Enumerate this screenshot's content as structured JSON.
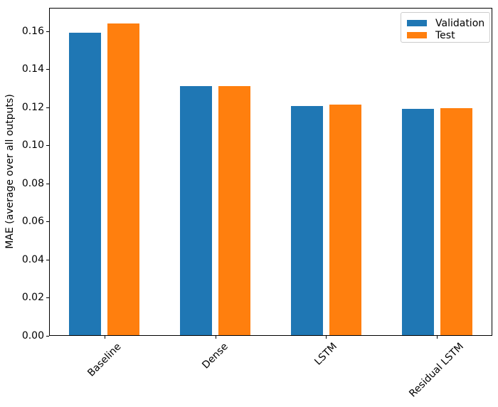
{
  "chart_data": {
    "type": "bar",
    "title": "",
    "categories": [
      "Baseline",
      "Dense",
      "LSTM",
      "Residual LSTM"
    ],
    "series": [
      {
        "name": "Validation",
        "color": "#1f77b4",
        "values": [
          0.159,
          0.131,
          0.1205,
          0.119
        ]
      },
      {
        "name": "Test",
        "color": "#ff7f0e",
        "values": [
          0.164,
          0.131,
          0.1215,
          0.1195
        ]
      }
    ],
    "xlabel": "",
    "ylabel": "MAE (average over all outputs)",
    "ylim": [
      0,
      0.1722
    ],
    "yticks": [
      0.0,
      0.02,
      0.04,
      0.06,
      0.08,
      0.1,
      0.12,
      0.14,
      0.16
    ],
    "ytick_labels": [
      "0.00",
      "0.02",
      "0.04",
      "0.06",
      "0.08",
      "0.10",
      "0.12",
      "0.14",
      "0.16"
    ],
    "x_tick_rotation_deg": 45,
    "grid": false,
    "background": "#ffffff",
    "legend": {
      "position": "upper right",
      "labels": [
        "Validation",
        "Test"
      ]
    }
  }
}
